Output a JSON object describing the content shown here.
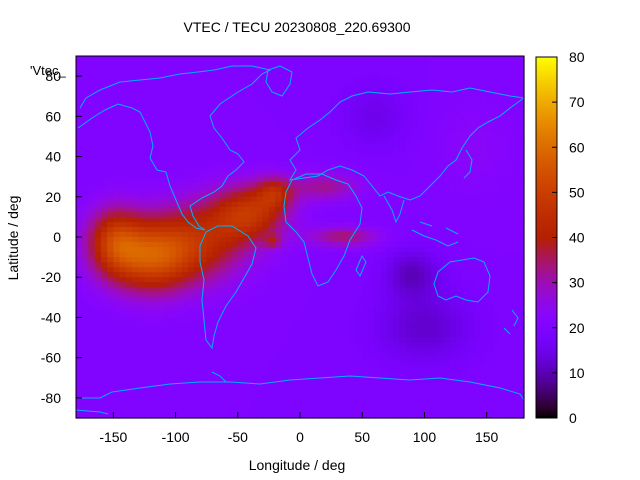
{
  "chart_data": {
    "type": "heatmap",
    "title": "VTEC / TECU 20230808_220.69300",
    "xlabel": "Longitude / deg",
    "ylabel": "Latitude / deg",
    "key_label": "'Vtec_",
    "xlim": [
      -180,
      180
    ],
    "ylim": [
      -90,
      90
    ],
    "xticks": [
      -150,
      -100,
      -50,
      0,
      50,
      100,
      150
    ],
    "yticks": [
      -80,
      -60,
      -40,
      -20,
      0,
      20,
      40,
      60,
      80
    ],
    "colorbar": {
      "min": 0,
      "max": 80,
      "ticks": [
        0,
        10,
        20,
        30,
        40,
        50,
        60,
        70,
        80
      ]
    },
    "grid": false,
    "lon_step": 5,
    "lat_step": 2.5,
    "field_components": [
      {
        "lon": -150,
        "lat": -2,
        "rlon": 22,
        "rlat": 17,
        "amp": 23
      },
      {
        "lon": -120,
        "lat": -10,
        "rlon": 34,
        "rlat": 18,
        "amp": 30
      },
      {
        "lon": -80,
        "lat": -2,
        "rlon": 40,
        "rlat": 20,
        "amp": 20
      },
      {
        "lon": -40,
        "lat": 12,
        "rlon": 30,
        "rlat": 14,
        "amp": 24
      },
      {
        "lon": -20,
        "lat": 22,
        "rlon": 15,
        "rlat": 8,
        "amp": 16
      },
      {
        "lon": -22,
        "lat": -2,
        "rlon": 6,
        "rlat": 3,
        "amp": 12
      },
      {
        "lon": 20,
        "lat": 25,
        "rlon": 28,
        "rlat": 7,
        "amp": 12
      },
      {
        "lon": 35,
        "lat": 0,
        "rlon": 28,
        "rlat": 5,
        "amp": 14
      },
      {
        "lon": 90,
        "lat": -18,
        "rlon": 22,
        "rlat": 12,
        "amp": -9
      },
      {
        "lon": 100,
        "lat": -45,
        "rlon": 40,
        "rlat": 18,
        "amp": -8
      },
      {
        "lon": 60,
        "lat": 60,
        "rlon": 28,
        "rlat": 16,
        "amp": -5
      },
      {
        "lon": 140,
        "lat": 45,
        "rlon": 30,
        "rlat": 22,
        "amp": 3
      }
    ],
    "field_base": 20
  },
  "map": {
    "coastline_color": "#00b0ff",
    "palette": "gnuplot-pm3d-black-blue-purple-red-orange-yellow"
  }
}
